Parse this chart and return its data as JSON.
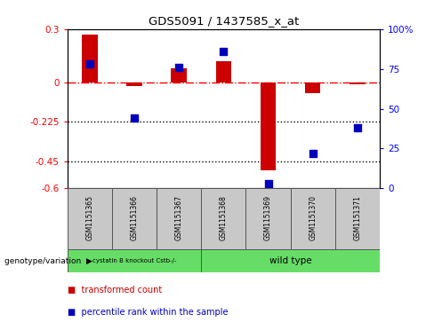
{
  "title": "GDS5091 / 1437585_x_at",
  "samples": [
    "GSM1151365",
    "GSM1151366",
    "GSM1151367",
    "GSM1151368",
    "GSM1151369",
    "GSM1151370",
    "GSM1151371"
  ],
  "red_values": [
    0.27,
    -0.02,
    0.08,
    0.12,
    -0.5,
    -0.06,
    -0.01
  ],
  "blue_values_pct": [
    78,
    44,
    76,
    86,
    3,
    22,
    38
  ],
  "ylim_left": [
    -0.6,
    0.3
  ],
  "ylim_right": [
    0,
    100
  ],
  "yticks_left": [
    0.3,
    0.0,
    -0.225,
    -0.45,
    -0.6
  ],
  "yticks_left_labels": [
    "0.3",
    "0",
    "-0.225",
    "-0.45",
    "-0.6"
  ],
  "yticks_right": [
    100,
    75,
    50,
    25,
    0
  ],
  "yticks_right_labels": [
    "100%",
    "75",
    "50",
    "25",
    "0"
  ],
  "hline_y": 0.0,
  "dotted_lines": [
    -0.225,
    -0.45
  ],
  "group1_indices": [
    0,
    1,
    2
  ],
  "group2_indices": [
    3,
    4,
    5,
    6
  ],
  "group1_label": "cystatin B knockout Cstb-/-",
  "group2_label": "wild type",
  "group_color": "#66DD66",
  "sample_box_color": "#C8C8C8",
  "genotype_label": "genotype/variation",
  "legend_red_label": "transformed count",
  "legend_blue_label": "percentile rank within the sample",
  "bar_color": "#CC0000",
  "dot_color": "#0000BB",
  "background_color": "#ffffff",
  "bar_width": 0.35,
  "dot_size": 40
}
